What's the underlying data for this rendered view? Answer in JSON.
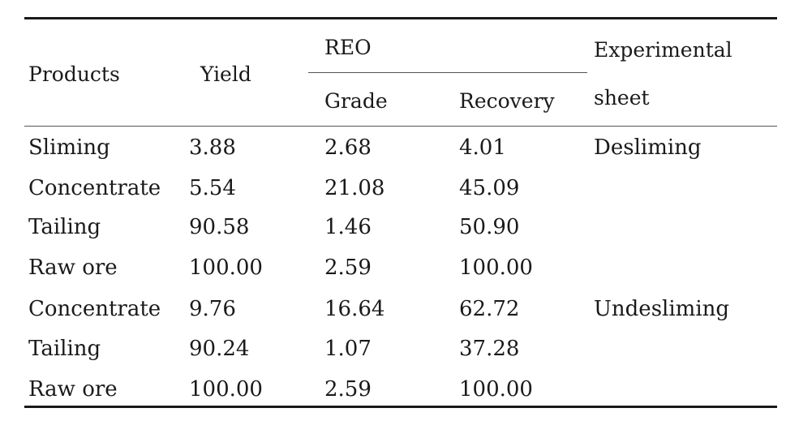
{
  "table": {
    "headers": {
      "products": "Products",
      "yield": "Yield",
      "reo": "REO",
      "grade": "Grade",
      "recovery": "Recovery",
      "experimental_line1": "Experimental",
      "experimental_line2": "sheet"
    },
    "rows": [
      {
        "products": "Sliming",
        "yield": "3.88",
        "grade": "2.68",
        "recovery": "4.01",
        "sheet": "Desliming"
      },
      {
        "products": "Concentrate",
        "yield": "5.54",
        "grade": "21.08",
        "recovery": "45.09",
        "sheet": ""
      },
      {
        "products": "Tailing",
        "yield": "90.58",
        "grade": "1.46",
        "recovery": "50.90",
        "sheet": ""
      },
      {
        "products": "Raw ore",
        "yield": "100.00",
        "grade": "2.59",
        "recovery": "100.00",
        "sheet": ""
      },
      {
        "products": "Concentrate",
        "yield": "9.76",
        "grade": "16.64",
        "recovery": "62.72",
        "sheet": "Undesliming"
      },
      {
        "products": "Tailing",
        "yield": "90.24",
        "grade": "1.07",
        "recovery": "37.28",
        "sheet": ""
      },
      {
        "products": "Raw ore",
        "yield": "100.00",
        "grade": "2.59",
        "recovery": "100.00",
        "sheet": ""
      }
    ]
  }
}
